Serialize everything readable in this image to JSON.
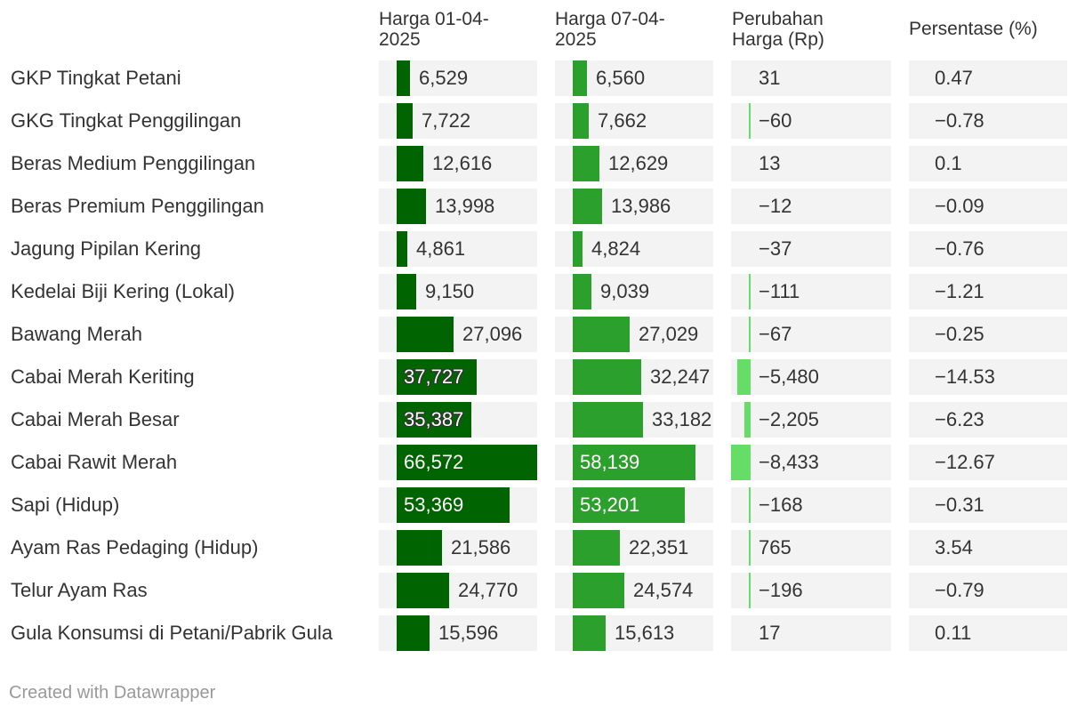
{
  "colors": {
    "bar_col1": "#006400",
    "bar_col2": "#2ca02c",
    "change_bar": "#66dd66",
    "cell_bg": "#f3f3f3"
  },
  "headers": {
    "col1": "Harga 01-04-\n2025",
    "col2": "Harga 07-04-\n2025",
    "col3": "Perubahan\nHarga (Rp)",
    "col4": "Persentase (%)"
  },
  "footer": "Created with Datawrapper",
  "chart_data": {
    "type": "table",
    "columns": [
      "",
      "Harga 01-04-2025",
      "Harga 07-04-2025",
      "Perubahan Harga (Rp)",
      "Persentase (%)"
    ],
    "rows": [
      {
        "name": "GKP Tingkat Petani",
        "p1": 6529,
        "p1_text": "6,529",
        "p2": 6560,
        "p2_text": "6,560",
        "chg": 31,
        "chg_text": "31",
        "pct": "0.47"
      },
      {
        "name": "GKG Tingkat Penggilingan",
        "p1": 7722,
        "p1_text": "7,722",
        "p2": 7662,
        "p2_text": "7,662",
        "chg": -60,
        "chg_text": "−60",
        "pct": "−0.78"
      },
      {
        "name": "Beras Medium Penggilingan",
        "p1": 12616,
        "p1_text": "12,616",
        "p2": 12629,
        "p2_text": "12,629",
        "chg": 13,
        "chg_text": "13",
        "pct": "0.1"
      },
      {
        "name": "Beras Premium Penggilingan",
        "p1": 13998,
        "p1_text": "13,998",
        "p2": 13986,
        "p2_text": "13,986",
        "chg": -12,
        "chg_text": "−12",
        "pct": "−0.09"
      },
      {
        "name": "Jagung Pipilan Kering",
        "p1": 4861,
        "p1_text": "4,861",
        "p2": 4824,
        "p2_text": "4,824",
        "chg": -37,
        "chg_text": "−37",
        "pct": "−0.76"
      },
      {
        "name": "Kedelai Biji Kering (Lokal)",
        "p1": 9150,
        "p1_text": "9,150",
        "p2": 9039,
        "p2_text": "9,039",
        "chg": -111,
        "chg_text": "−111",
        "pct": "−1.21"
      },
      {
        "name": "Bawang Merah",
        "p1": 27096,
        "p1_text": "27,096",
        "p2": 27029,
        "p2_text": "27,029",
        "chg": -67,
        "chg_text": "−67",
        "pct": "−0.25"
      },
      {
        "name": "Cabai Merah Keriting",
        "p1": 37727,
        "p1_text": "37,727",
        "p2": 32247,
        "p2_text": "32,247",
        "chg": -5480,
        "chg_text": "−5,480",
        "pct": "−14.53"
      },
      {
        "name": "Cabai Merah Besar",
        "p1": 35387,
        "p1_text": "35,387",
        "p2": 33182,
        "p2_text": "33,182",
        "chg": -2205,
        "chg_text": "−2,205",
        "pct": "−6.23"
      },
      {
        "name": "Cabai Rawit Merah",
        "p1": 66572,
        "p1_text": "66,572",
        "p2": 58139,
        "p2_text": "58,139",
        "chg": -8433,
        "chg_text": "−8,433",
        "pct": "−12.67"
      },
      {
        "name": "Sapi (Hidup)",
        "p1": 53369,
        "p1_text": "53,369",
        "p2": 53201,
        "p2_text": "53,201",
        "chg": -168,
        "chg_text": "−168",
        "pct": "−0.31"
      },
      {
        "name": "Ayam Ras Pedaging (Hidup)",
        "p1": 21586,
        "p1_text": "21,586",
        "p2": 22351,
        "p2_text": "22,351",
        "chg": 765,
        "chg_text": "765",
        "pct": "3.54"
      },
      {
        "name": "Telur Ayam Ras",
        "p1": 24770,
        "p1_text": "24,770",
        "p2": 24574,
        "p2_text": "24,574",
        "chg": -196,
        "chg_text": "−196",
        "pct": "−0.79"
      },
      {
        "name": "Gula Konsumsi di Petani/Pabrik Gula",
        "p1": 15596,
        "p1_text": "15,596",
        "p2": 15613,
        "p2_text": "15,613",
        "chg": 17,
        "chg_text": "17",
        "pct": "0.11"
      }
    ],
    "price_max": 66572,
    "change_abs_max": 8433
  }
}
